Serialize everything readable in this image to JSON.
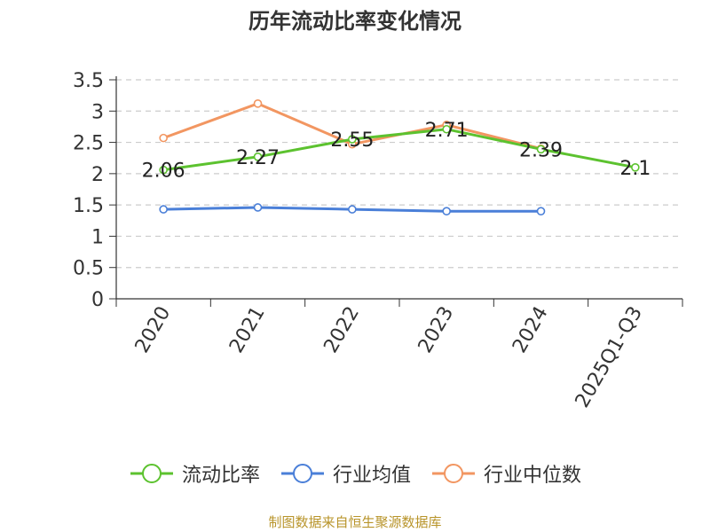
{
  "chart_data": {
    "type": "line",
    "title": "历年流动比率变化情况",
    "categories": [
      "2020",
      "2021",
      "2022",
      "2023",
      "2024",
      "2025Q1-Q3"
    ],
    "ylim": [
      0,
      3.5
    ],
    "yticks": [
      "0",
      "0.5",
      "1",
      "1.5",
      "2",
      "2.5",
      "3",
      "3.5"
    ],
    "grid": true,
    "legend_position": "bottom",
    "series": [
      {
        "name": "流动比率",
        "color": "#5cc22f",
        "values": [
          2.06,
          2.27,
          2.55,
          2.71,
          2.39,
          2.1
        ],
        "labels": [
          "2.06",
          "2.27",
          "2.55",
          "2.71",
          "2.39",
          "2.1"
        ]
      },
      {
        "name": "行业均值",
        "color": "#4a7fd8",
        "values": [
          1.43,
          1.46,
          1.43,
          1.4,
          1.4,
          null
        ]
      },
      {
        "name": "行业中位数",
        "color": "#f29661",
        "values": [
          2.57,
          3.12,
          2.47,
          2.78,
          2.4,
          null
        ]
      }
    ]
  },
  "source": "制图数据来自恒生聚源数据库"
}
